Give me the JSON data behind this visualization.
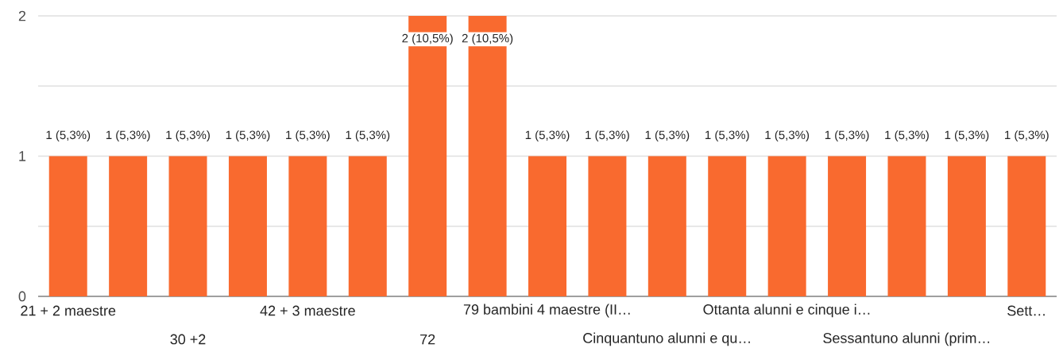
{
  "chart_data": {
    "type": "bar",
    "categories": [
      "21 + 2 maestre",
      null,
      "30 +2",
      null,
      "42 + 3 maestre",
      null,
      "72",
      null,
      "79 bambini 4 maestre (II…",
      null,
      "Cinquantuno alunni e qu…",
      null,
      "Ottanta alunni e cinque i…",
      null,
      "Sessantuno alunni (prim…",
      null,
      "Sett…"
    ],
    "values": [
      1,
      1,
      1,
      1,
      1,
      1,
      2,
      2,
      1,
      1,
      1,
      1,
      1,
      1,
      1,
      1,
      1
    ],
    "value_labels": [
      "1 (5,3%)",
      "1 (5,3%)",
      "1 (5,3%)",
      "1 (5,3%)",
      "1 (5,3%)",
      "1 (5,3%)",
      "2 (10,5%)",
      "2 (10,5%)",
      "1 (5,3%)",
      "1 (5,3%)",
      "1 (5,3%)",
      "1 (5,3%)",
      "1 (5,3%)",
      "1 (5,3%)",
      "1 (5,3%)",
      "1 (5,3%)",
      "1 (5,3%)"
    ],
    "color": "#f96a2f",
    "ylim": [
      0,
      2
    ],
    "yticks": [
      0,
      {
        "value": 0.5,
        "label": null
      },
      1,
      {
        "value": 1.5,
        "label": null
      },
      2
    ],
    "grid": "y"
  }
}
